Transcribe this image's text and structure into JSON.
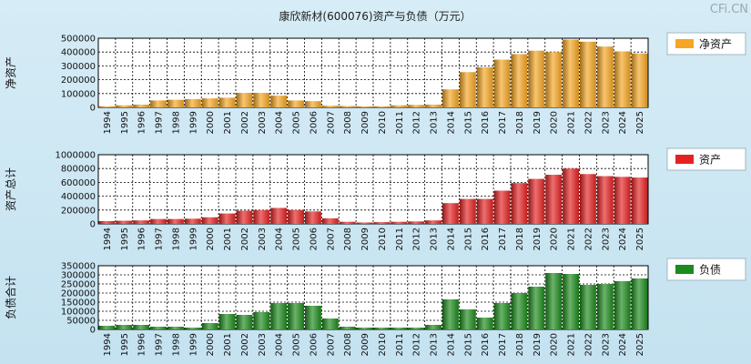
{
  "header": {
    "title": "康欣新材(600076)资产与负债（万元）",
    "watermark": "CFi.CN"
  },
  "chart_data": [
    {
      "type": "bar",
      "id": "net-assets",
      "ylabel": "净资产",
      "legend": "净资产",
      "color": "#f5a623",
      "ylim": [
        0,
        500000
      ],
      "yticks": [
        0,
        100000,
        200000,
        300000,
        400000,
        500000
      ],
      "grid": true,
      "legend_position": "right",
      "categories": [
        "1994",
        "1995",
        "1996",
        "1997",
        "1998",
        "1999",
        "2000",
        "2001",
        "2002",
        "2003",
        "2004",
        "2005",
        "2006",
        "2007",
        "2008",
        "2009",
        "2010",
        "2011",
        "2012",
        "2013",
        "2014",
        "2015",
        "2016",
        "2017",
        "2018",
        "2019",
        "2020",
        "2021",
        "2022",
        "2023",
        "2024",
        "2025"
      ],
      "values": [
        8000,
        15000,
        20000,
        50000,
        55000,
        60000,
        65000,
        70000,
        105000,
        105000,
        85000,
        50000,
        45000,
        12000,
        10000,
        8000,
        8000,
        15000,
        18000,
        20000,
        130000,
        255000,
        290000,
        345000,
        385000,
        410000,
        400000,
        490000,
        475000,
        440000,
        405000,
        390000
      ]
    },
    {
      "type": "bar",
      "id": "total-assets",
      "ylabel": "资产总计",
      "legend": "资产",
      "color": "#e52222",
      "ylim": [
        0,
        1000000
      ],
      "yticks": [
        0,
        200000,
        400000,
        600000,
        800000,
        1000000
      ],
      "grid": true,
      "legend_position": "right",
      "categories": [
        "1994",
        "1995",
        "1996",
        "1997",
        "1998",
        "1999",
        "2000",
        "2001",
        "2002",
        "2003",
        "2004",
        "2005",
        "2006",
        "2007",
        "2008",
        "2009",
        "2010",
        "2011",
        "2012",
        "2013",
        "2014",
        "2015",
        "2016",
        "2017",
        "2018",
        "2019",
        "2020",
        "2021",
        "2022",
        "2023",
        "2024",
        "2025"
      ],
      "values": [
        40000,
        45000,
        50000,
        70000,
        70000,
        75000,
        95000,
        150000,
        190000,
        200000,
        230000,
        200000,
        180000,
        80000,
        30000,
        20000,
        25000,
        30000,
        35000,
        50000,
        300000,
        360000,
        360000,
        480000,
        590000,
        650000,
        710000,
        800000,
        720000,
        690000,
        680000,
        670000
      ]
    },
    {
      "type": "bar",
      "id": "liabilities",
      "ylabel": "负债合计",
      "legend": "负债",
      "color": "#1c8a1c",
      "ylim": [
        0,
        350000
      ],
      "yticks": [
        0,
        50000,
        100000,
        150000,
        200000,
        250000,
        300000,
        350000
      ],
      "grid": true,
      "legend_position": "right",
      "categories": [
        "1994",
        "1995",
        "1996",
        "1997",
        "1998",
        "1999",
        "2000",
        "2001",
        "2002",
        "2003",
        "2004",
        "2005",
        "2006",
        "2007",
        "2008",
        "2009",
        "2010",
        "2011",
        "2012",
        "2013",
        "2014",
        "2015",
        "2016",
        "2017",
        "2018",
        "2019",
        "2020",
        "2021",
        "2022",
        "2023",
        "2024",
        "2025"
      ],
      "values": [
        20000,
        25000,
        25000,
        15000,
        15000,
        10000,
        35000,
        85000,
        80000,
        95000,
        145000,
        145000,
        130000,
        60000,
        15000,
        10000,
        10000,
        10000,
        10000,
        25000,
        165000,
        110000,
        65000,
        145000,
        200000,
        235000,
        310000,
        305000,
        245000,
        250000,
        265000,
        280000
      ]
    }
  ]
}
